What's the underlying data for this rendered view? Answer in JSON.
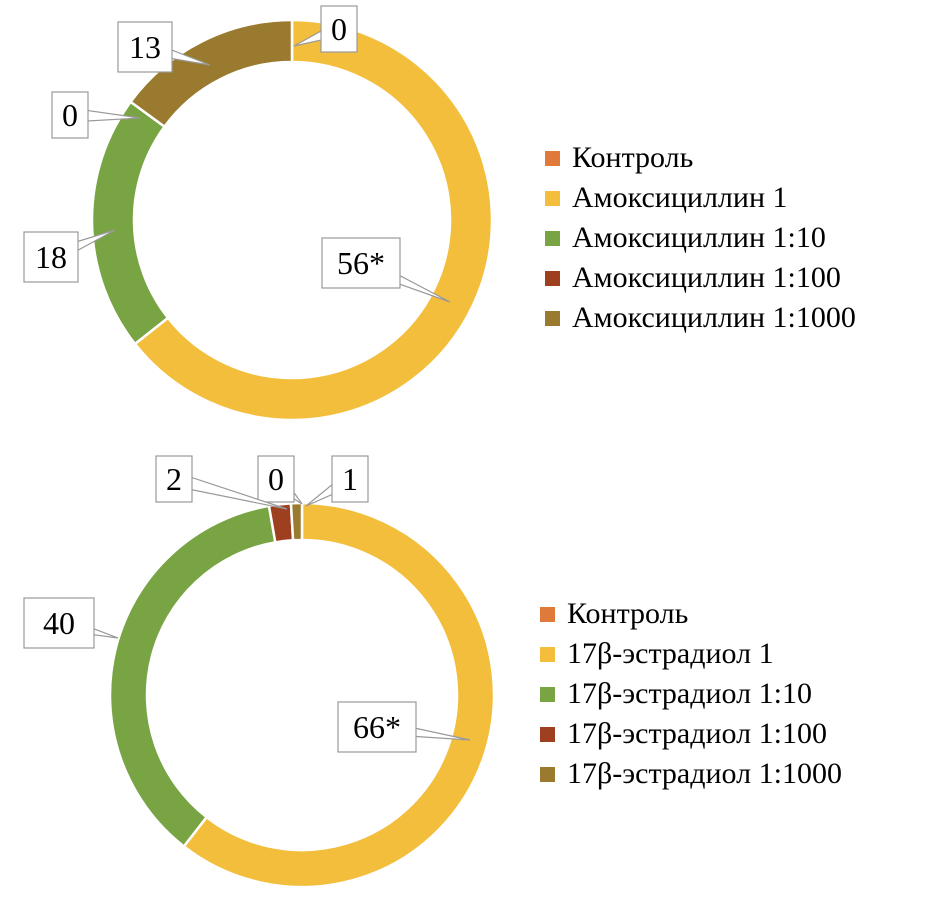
{
  "chart_data": [
    {
      "type": "pie",
      "variant": "donut",
      "categories": [
        "Контроль",
        "Амоксициллин 1",
        "Амоксициллин 1:10",
        "Амоксициллин 1:100",
        "Амоксициллин 1:1000"
      ],
      "values": [
        0,
        56,
        18,
        0,
        13
      ],
      "data_labels": [
        "0",
        "56*",
        "18",
        "0",
        "13"
      ],
      "colors": [
        "#E07A3A",
        "#F2BE3C",
        "#78A444",
        "#9E4020",
        "#9A7A2E"
      ],
      "legend_position": "right"
    },
    {
      "type": "pie",
      "variant": "donut",
      "categories": [
        "Контроль",
        "17β-эстрадиол 1",
        "17β-эстрадиол 1:10",
        "17β-эстрадиол 1:100",
        "17β-эстрадиол 1:1000"
      ],
      "values": [
        0,
        66,
        40,
        2,
        1
      ],
      "data_labels": [
        "0",
        "66*",
        "40",
        "2",
        "1"
      ],
      "colors": [
        "#E07A3A",
        "#F2BE3C",
        "#78A444",
        "#9E4020",
        "#9A7A2E"
      ],
      "legend_position": "right"
    }
  ]
}
